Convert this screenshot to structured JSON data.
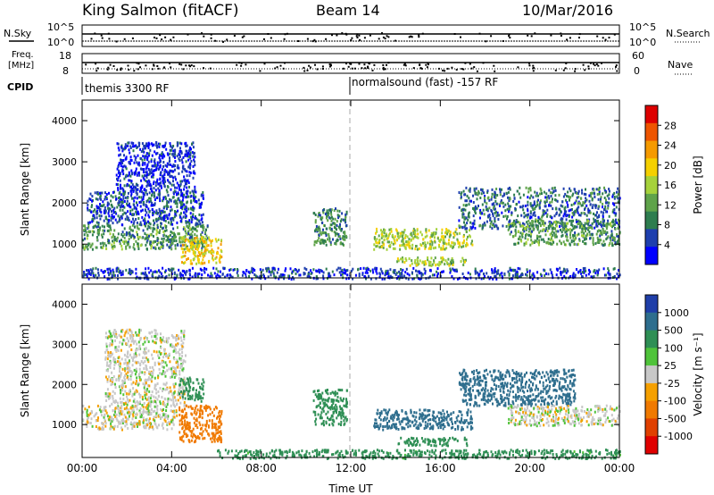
{
  "header": {
    "station": "King Salmon (fitACF)",
    "beam": "Beam 14",
    "date": "10/Mar/2016"
  },
  "top_panels": {
    "nsky_label": "N.Sky",
    "nsky_ticks": [
      "10^5",
      "10^0"
    ],
    "nsearch_label": "N.Search",
    "nsearch_ticks": [
      "10^5",
      "10^0"
    ],
    "freq_label_1": "Freq.",
    "freq_label_2": "[MHz]",
    "freq_ticks": [
      "18",
      "8"
    ],
    "nave_label": "Nave",
    "nave_ticks": [
      "60",
      "0"
    ],
    "cpid_label": "CPID",
    "cpid_segments": [
      {
        "text": "themis 3300 RF",
        "start_hour": 0
      },
      {
        "text": "normalsound (fast) -157 RF",
        "start_hour": 12
      }
    ]
  },
  "chart_data": [
    {
      "type": "heatmap",
      "title": "Power",
      "xlabel": "Time UT",
      "ylabel": "Slant Range [km]",
      "x_ticks": [
        "00:00",
        "04:00",
        "08:00",
        "12:00",
        "16:00",
        "20:00",
        "00:00"
      ],
      "x_range_hours": [
        0,
        24
      ],
      "ylim": [
        180,
        4500
      ],
      "y_ticks": [
        1000,
        2000,
        3000,
        4000
      ],
      "colorbar": {
        "label": "Power [dB]",
        "ticks": [
          "4",
          "8",
          "12",
          "16",
          "20",
          "24",
          "28"
        ],
        "range": [
          0,
          30
        ],
        "colors": [
          "#0000ff",
          "#1e3fae",
          "#2e7d4f",
          "#5fa34a",
          "#a6d23b",
          "#f5d000",
          "#f59a00",
          "#ee5500",
          "#dd0000"
        ]
      },
      "echo_regions": [
        {
          "t0": 0.0,
          "t1": 5.6,
          "r0": 900,
          "r1": 1500,
          "level": 10
        },
        {
          "t0": 0.2,
          "t1": 5.4,
          "r0": 1500,
          "r1": 2300,
          "level": 5
        },
        {
          "t0": 1.5,
          "t1": 5.0,
          "r0": 2300,
          "r1": 3500,
          "level": 3
        },
        {
          "t0": 4.4,
          "t1": 6.2,
          "r0": 550,
          "r1": 1200,
          "level": 18
        },
        {
          "t0": 10.3,
          "t1": 11.8,
          "r0": 1000,
          "r1": 1900,
          "level": 9
        },
        {
          "t0": 13.0,
          "t1": 17.4,
          "r0": 900,
          "r1": 1400,
          "level": 15
        },
        {
          "t0": 14.0,
          "t1": 17.2,
          "r0": 500,
          "r1": 700,
          "level": 14
        },
        {
          "t0": 16.8,
          "t1": 24.0,
          "r0": 1400,
          "r1": 2400,
          "level": 7
        },
        {
          "t0": 19.0,
          "t1": 24.0,
          "r0": 1000,
          "r1": 1600,
          "level": 10
        },
        {
          "t0": 0.0,
          "t1": 24.0,
          "r0": 180,
          "r1": 450,
          "level": 4
        }
      ]
    },
    {
      "type": "heatmap",
      "title": "Velocity",
      "xlabel": "Time UT",
      "ylabel": "Slant Range [km]",
      "x_ticks": [
        "00:00",
        "04:00",
        "08:00",
        "12:00",
        "16:00",
        "20:00",
        "00:00"
      ],
      "x_range_hours": [
        0,
        24
      ],
      "ylim": [
        180,
        4500
      ],
      "y_ticks": [
        1000,
        2000,
        3000,
        4000
      ],
      "colorbar": {
        "label": "Velocity [m s⁻¹]",
        "ticks": [
          "1000",
          "500",
          "100",
          "25",
          "-25",
          "-100",
          "-500",
          "-1000"
        ],
        "colors": [
          "#1f3ea8",
          "#2e6e8e",
          "#2f8f55",
          "#4fc33a",
          "#c8c8c8",
          "#f5a000",
          "#f07a00",
          "#e04000",
          "#e00000"
        ]
      },
      "echo_regions": [
        {
          "t0": 0.0,
          "t1": 4.2,
          "r0": 900,
          "r1": 1500,
          "velocity": 0
        },
        {
          "t0": 1.0,
          "t1": 4.6,
          "r0": 1500,
          "r1": 3400,
          "velocity": 0
        },
        {
          "t0": 4.3,
          "t1": 6.2,
          "r0": 600,
          "r1": 1500,
          "velocity": -150
        },
        {
          "t0": 4.3,
          "t1": 5.4,
          "r0": 1600,
          "r1": 2200,
          "velocity": 150
        },
        {
          "t0": 10.3,
          "t1": 11.8,
          "r0": 1000,
          "r1": 1900,
          "velocity": 150
        },
        {
          "t0": 13.0,
          "t1": 17.4,
          "r0": 900,
          "r1": 1400,
          "velocity": 500
        },
        {
          "t0": 14.0,
          "t1": 17.2,
          "r0": 500,
          "r1": 700,
          "velocity": 100
        },
        {
          "t0": 16.8,
          "t1": 22.0,
          "r0": 1500,
          "r1": 2400,
          "velocity": 500
        },
        {
          "t0": 19.0,
          "t1": 24.0,
          "r0": 1000,
          "r1": 1500,
          "velocity": 0
        },
        {
          "t0": 6.0,
          "t1": 24.0,
          "r0": 180,
          "r1": 400,
          "velocity": 100
        }
      ]
    }
  ]
}
